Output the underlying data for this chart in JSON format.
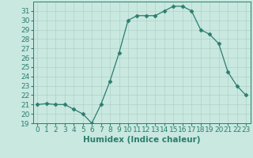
{
  "x": [
    0,
    1,
    2,
    3,
    4,
    5,
    6,
    7,
    8,
    9,
    10,
    11,
    12,
    13,
    14,
    15,
    16,
    17,
    18,
    19,
    20,
    21,
    22,
    23
  ],
  "y": [
    21,
    21.1,
    21,
    21,
    20.5,
    20,
    19,
    21,
    23.5,
    26.5,
    30,
    30.5,
    30.5,
    30.5,
    31,
    31.5,
    31.5,
    31,
    29,
    28.5,
    27.5,
    24.5,
    23,
    22
  ],
  "line_color": "#2d7d6e",
  "marker": "D",
  "marker_size": 2.5,
  "bg_color": "#c8e8e0",
  "grid_color": "#b0d0c8",
  "xlabel": "Humidex (Indice chaleur)",
  "ylim": [
    19,
    32
  ],
  "xlim": [
    -0.5,
    23.5
  ],
  "yticks": [
    19,
    20,
    21,
    22,
    23,
    24,
    25,
    26,
    27,
    28,
    29,
    30,
    31
  ],
  "xticks": [
    0,
    1,
    2,
    3,
    4,
    5,
    6,
    7,
    8,
    9,
    10,
    11,
    12,
    13,
    14,
    15,
    16,
    17,
    18,
    19,
    20,
    21,
    22,
    23
  ],
  "tick_fontsize": 6.5,
  "xlabel_fontsize": 7.5
}
